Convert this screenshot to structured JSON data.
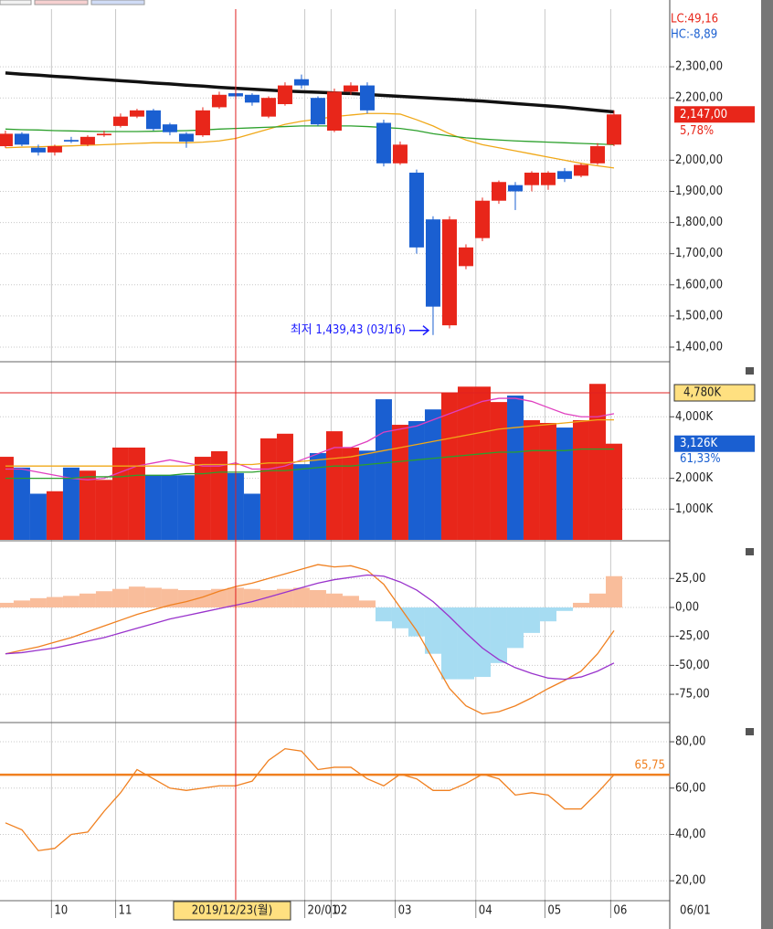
{
  "chart_data": [
    {
      "type": "candlestick",
      "open": [
        2045,
        2085,
        2040,
        2025,
        2065,
        2050,
        2080,
        2110,
        2140,
        2160,
        2115,
        2085,
        2080,
        2170,
        2215,
        2210,
        2140,
        2180,
        2260,
        2200,
        2095,
        2220,
        2240,
        2120,
        1990,
        1960,
        1810,
        1470,
        1660,
        1750,
        1870,
        1920,
        1920,
        1920,
        1965,
        1950,
        1990,
        2050
      ],
      "high": [
        2095,
        2090,
        2050,
        2050,
        2075,
        2080,
        2095,
        2150,
        2165,
        2165,
        2120,
        2090,
        2170,
        2220,
        2230,
        2215,
        2205,
        2250,
        2275,
        2205,
        2230,
        2250,
        2250,
        2130,
        2060,
        1970,
        1820,
        1820,
        1730,
        1880,
        1935,
        1930,
        1965,
        1965,
        1975,
        1990,
        2055,
        2160
      ],
      "low": [
        2040,
        2045,
        2015,
        2015,
        2055,
        2045,
        2075,
        2105,
        2135,
        2095,
        2080,
        2040,
        2075,
        2165,
        2195,
        2175,
        2135,
        2175,
        2230,
        2110,
        2090,
        2210,
        2150,
        1980,
        1985,
        1700,
        1439,
        1460,
        1650,
        1740,
        1860,
        1840,
        1900,
        1905,
        1930,
        1945,
        1985,
        2045
      ],
      "close": [
        2085,
        2050,
        2025,
        2045,
        2060,
        2075,
        2085,
        2140,
        2160,
        2100,
        2090,
        2060,
        2160,
        2210,
        2205,
        2185,
        2200,
        2240,
        2240,
        2115,
        2220,
        2240,
        2160,
        1990,
        2050,
        1720,
        1530,
        1810,
        1720,
        1870,
        1930,
        1900,
        1960,
        1960,
        1940,
        1985,
        2045,
        2147
      ],
      "up_color": "#e8261a",
      "down_color": "#1a5fd1",
      "series": [
        {
          "color": "#111111",
          "values": [
            2280,
            2276,
            2273,
            2269,
            2266,
            2262,
            2259,
            2255,
            2252,
            2248,
            2245,
            2241,
            2238,
            2234,
            2231,
            2228,
            2225,
            2222,
            2220,
            2218,
            2216,
            2214,
            2211,
            2208,
            2205,
            2202,
            2199,
            2196,
            2193,
            2190,
            2186,
            2182,
            2178,
            2174,
            2170,
            2165,
            2160,
            2155
          ]
        },
        {
          "color": "#f0a818",
          "values": [
            2040,
            2042,
            2043,
            2045,
            2046,
            2048,
            2050,
            2052,
            2054,
            2056,
            2056,
            2056,
            2058,
            2062,
            2070,
            2085,
            2100,
            2115,
            2125,
            2132,
            2140,
            2145,
            2150,
            2150,
            2148,
            2130,
            2110,
            2085,
            2065,
            2050,
            2040,
            2030,
            2020,
            2010,
            2000,
            1990,
            1982,
            1975
          ]
        },
        {
          "color": "#2ca02c",
          "values": [
            2100,
            2098,
            2097,
            2095,
            2094,
            2093,
            2092,
            2092,
            2092,
            2093,
            2094,
            2095,
            2097,
            2100,
            2102,
            2104,
            2106,
            2108,
            2110,
            2110,
            2110,
            2110,
            2108,
            2105,
            2102,
            2095,
            2085,
            2078,
            2072,
            2068,
            2065,
            2062,
            2060,
            2058,
            2056,
            2054,
            2052,
            2050
          ]
        }
      ],
      "ylim": [
        1356,
        2485
      ],
      "yticks": [
        {
          "value": 2300,
          "label": "2,300,00"
        },
        {
          "value": 2200,
          "label": "2,200,00"
        },
        {
          "value": 2000,
          "label": "2,000,00"
        },
        {
          "value": 1900,
          "label": "1,900,00"
        },
        {
          "value": 1800,
          "label": "1,800,00"
        },
        {
          "value": 1700,
          "label": "1,700,00"
        },
        {
          "value": 1600,
          "label": "1,600,00"
        },
        {
          "value": 1500,
          "label": "1,500,00"
        },
        {
          "value": 1400,
          "label": "1,400,00"
        }
      ],
      "lc": "LC:49,16",
      "hc": "HC:-8,89",
      "last_label": "2,147,00",
      "change": "5,78%",
      "low_note": "최저 1,439,43 (03/16)"
    },
    {
      "type": "bar",
      "values": [
        2700,
        2350,
        1500,
        1580,
        2350,
        2250,
        1950,
        3000,
        3000,
        2100,
        2100,
        2100,
        2700,
        2880,
        2170,
        1500,
        3300,
        3450,
        2460,
        2820,
        3530,
        3000,
        2900,
        4570,
        3740,
        3860,
        4240,
        4780,
        4980,
        4980,
        4480,
        4690,
        3890,
        3800,
        3650,
        3890,
        5070,
        3126
      ],
      "series": [
        {
          "color": "#e040c0",
          "values": [
            2300,
            2300,
            2200,
            2100,
            2000,
            1950,
            2000,
            2200,
            2400,
            2500,
            2600,
            2500,
            2400,
            2400,
            2500,
            2300,
            2300,
            2400,
            2600,
            2800,
            3000,
            3000,
            3200,
            3500,
            3600,
            3700,
            3900,
            4100,
            4300,
            4500,
            4600,
            4600,
            4500,
            4300,
            4100,
            4000,
            4000,
            4100
          ]
        },
        {
          "color": "#f0a818",
          "values": [
            2400,
            2400,
            2400,
            2400,
            2400,
            2400,
            2400,
            2400,
            2400,
            2400,
            2400,
            2400,
            2450,
            2450,
            2450,
            2450,
            2500,
            2500,
            2550,
            2600,
            2650,
            2700,
            2800,
            2900,
            3000,
            3100,
            3200,
            3300,
            3400,
            3500,
            3600,
            3650,
            3700,
            3750,
            3800,
            3850,
            3900,
            3900
          ]
        },
        {
          "color": "#2ca02c",
          "values": [
            2000,
            2000,
            2000,
            2000,
            2000,
            2050,
            2050,
            2050,
            2100,
            2100,
            2100,
            2150,
            2150,
            2200,
            2200,
            2200,
            2250,
            2250,
            2300,
            2350,
            2400,
            2400,
            2450,
            2500,
            2550,
            2600,
            2650,
            2700,
            2750,
            2800,
            2850,
            2850,
            2900,
            2900,
            2900,
            2950,
            2950,
            2950
          ]
        }
      ],
      "ylim": [
        0,
        5760
      ],
      "yticks": [
        {
          "value": 4000,
          "label": "4,000K"
        },
        {
          "value": 2000,
          "label": "2,000K"
        },
        {
          "value": 1000,
          "label": "1,000K"
        }
      ],
      "crosshair_value": 4780,
      "crosshair_label": "4,780K",
      "last_label": "3,126K",
      "ratio": "61,33%"
    },
    {
      "type": "bar",
      "values": [
        4,
        6,
        8,
        9,
        10,
        12,
        14,
        16,
        18,
        17,
        16,
        15,
        15,
        16,
        17,
        16,
        15,
        16,
        17,
        15,
        12,
        10,
        6,
        -12,
        -18,
        -25,
        -40,
        -62,
        -62,
        -60,
        -48,
        -35,
        -22,
        -12,
        -3,
        4,
        12,
        27
      ],
      "pos_color": "#f9bd9b",
      "neg_color": "#a6dcf2",
      "series": [
        {
          "color": "#f08020",
          "values": [
            -40,
            -37,
            -34,
            -30,
            -26,
            -21,
            -16,
            -11,
            -6,
            -2,
            2,
            5,
            9,
            14,
            18,
            21,
            25,
            29,
            33,
            37,
            35,
            36,
            32,
            20,
            0,
            -20,
            -45,
            -70,
            -85,
            -92,
            -90,
            -85,
            -78,
            -70,
            -63,
            -55,
            -40,
            -20
          ]
        },
        {
          "color": "#9933cc",
          "values": [
            -40,
            -39,
            -37,
            -35,
            -32,
            -29,
            -26,
            -22,
            -18,
            -14,
            -10,
            -7,
            -4,
            -1,
            2,
            5,
            9,
            13,
            17,
            21,
            24,
            26,
            28,
            27,
            22,
            15,
            5,
            -8,
            -22,
            -35,
            -45,
            -52,
            -57,
            -61,
            -62,
            -60,
            -55,
            -48
          ]
        }
      ],
      "ylim": [
        -98.6,
        55.2
      ],
      "yticks": [
        {
          "value": 25,
          "label": "25,00"
        },
        {
          "value": 0,
          "label": "0,00"
        },
        {
          "value": -25,
          "label": "-25,00"
        },
        {
          "value": -50,
          "label": "-50,00"
        },
        {
          "value": -75,
          "label": "-75,00"
        }
      ]
    },
    {
      "type": "line",
      "series": [
        {
          "color": "#f08020",
          "values": [
            45,
            42,
            33,
            34,
            40,
            41,
            50,
            58,
            68,
            64,
            60,
            59,
            60,
            61,
            61,
            63,
            72,
            77,
            76,
            68,
            69,
            69,
            64,
            61,
            66,
            64,
            59,
            59,
            62,
            66,
            64,
            57,
            58,
            57,
            51,
            51,
            58,
            65.75
          ]
        }
      ],
      "reference": 65.75,
      "reference_label": "65,75",
      "ylim": [
        11.8,
        87.9
      ],
      "yticks": [
        {
          "value": 80,
          "label": "80,00"
        },
        {
          "value": 60,
          "label": "60,00"
        },
        {
          "value": 40,
          "label": "40,00"
        },
        {
          "value": 20,
          "label": "20,00"
        }
      ],
      "xlim": [
        -0.33,
        40.39
      ],
      "xticks": [
        {
          "value": 2.8,
          "label": "10"
        },
        {
          "value": 6.7,
          "label": "11"
        },
        {
          "value": 18.2,
          "label": "20/01"
        },
        {
          "value": 19.8,
          "label": "02"
        },
        {
          "value": 23.7,
          "label": "03"
        },
        {
          "value": 28.6,
          "label": "04"
        },
        {
          "value": 32.8,
          "label": "05"
        },
        {
          "value": 36.8,
          "label": "06"
        }
      ],
      "x_end_label": "06/01",
      "crosshair_index": 14,
      "crosshair_label": "2019/12/23(월)"
    }
  ]
}
